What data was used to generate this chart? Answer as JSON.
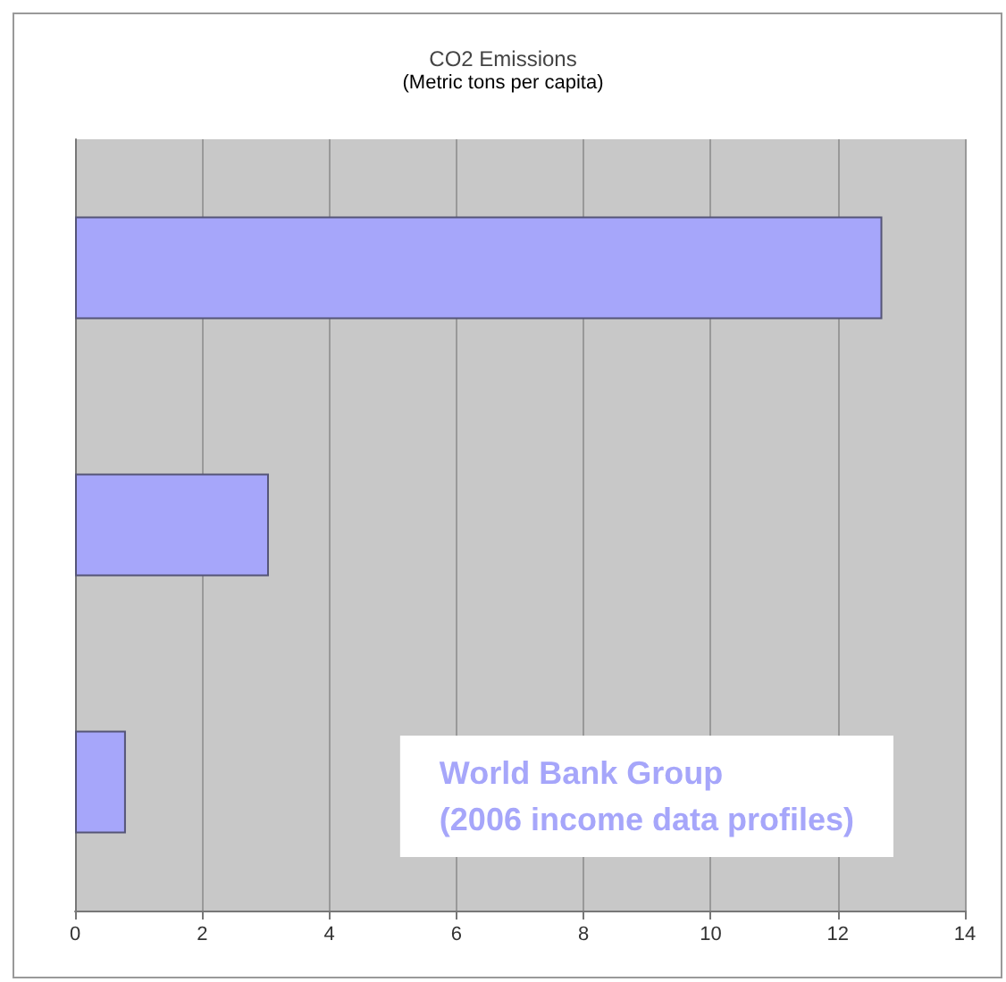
{
  "chart_data": {
    "type": "bar",
    "orientation": "horizontal",
    "title": "CO2 Emissions",
    "subtitle": "(Metric tons per capita)",
    "categories": [
      null,
      null,
      null
    ],
    "values": [
      12.7,
      3.05,
      0.8
    ],
    "color": "#a6a6fa",
    "xlim": [
      0,
      14
    ],
    "xticks": [
      0,
      2,
      4,
      6,
      8,
      10,
      12,
      14
    ],
    "grid": "x",
    "annotations": [
      "World Bank Group\n(2006 income data profiles)"
    ]
  }
}
